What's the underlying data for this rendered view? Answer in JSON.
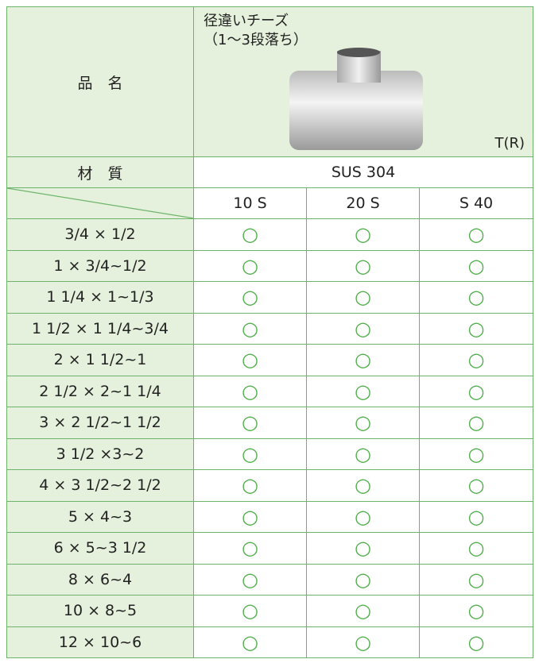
{
  "header": {
    "item_label": "品　名",
    "product_name": "径違いチーズ",
    "product_note": "（1～3段落ち）",
    "product_code": "T(R)"
  },
  "material": {
    "label": "材　質",
    "value": "SUS 304"
  },
  "table": {
    "columns": [
      "10 S",
      "20 S",
      "S 40"
    ],
    "rows": [
      {
        "size": "3/4 × 1/2",
        "marks": [
          "○",
          "○",
          "○"
        ]
      },
      {
        "size": "1 × 3/4~1/2",
        "marks": [
          "○",
          "○",
          "○"
        ]
      },
      {
        "size": "1 1/4 × 1~1/3",
        "marks": [
          "○",
          "○",
          "○"
        ]
      },
      {
        "size": "1 1/2 × 1 1/4~3/4",
        "marks": [
          "○",
          "○",
          "○"
        ]
      },
      {
        "size": "2 × 1 1/2~1",
        "marks": [
          "○",
          "○",
          "○"
        ]
      },
      {
        "size": "2 1/2 × 2~1 1/4",
        "marks": [
          "○",
          "○",
          "○"
        ]
      },
      {
        "size": "3 × 2 1/2~1 1/2",
        "marks": [
          "○",
          "○",
          "○"
        ]
      },
      {
        "size": "3 1/2 ×3~2",
        "marks": [
          "○",
          "○",
          "○"
        ]
      },
      {
        "size": "4 × 3 1/2~2 1/2",
        "marks": [
          "○",
          "○",
          "○"
        ]
      },
      {
        "size": "5 × 4~3",
        "marks": [
          "○",
          "○",
          "○"
        ]
      },
      {
        "size": "6 × 5~3 1/2",
        "marks": [
          "○",
          "○",
          "○"
        ]
      },
      {
        "size": "8 × 6~4",
        "marks": [
          "○",
          "○",
          "○"
        ]
      },
      {
        "size": "10 × 8~5",
        "marks": [
          "○",
          "○",
          "○"
        ]
      },
      {
        "size": "12 × 10~6",
        "marks": [
          "○",
          "○",
          "○"
        ]
      }
    ]
  }
}
